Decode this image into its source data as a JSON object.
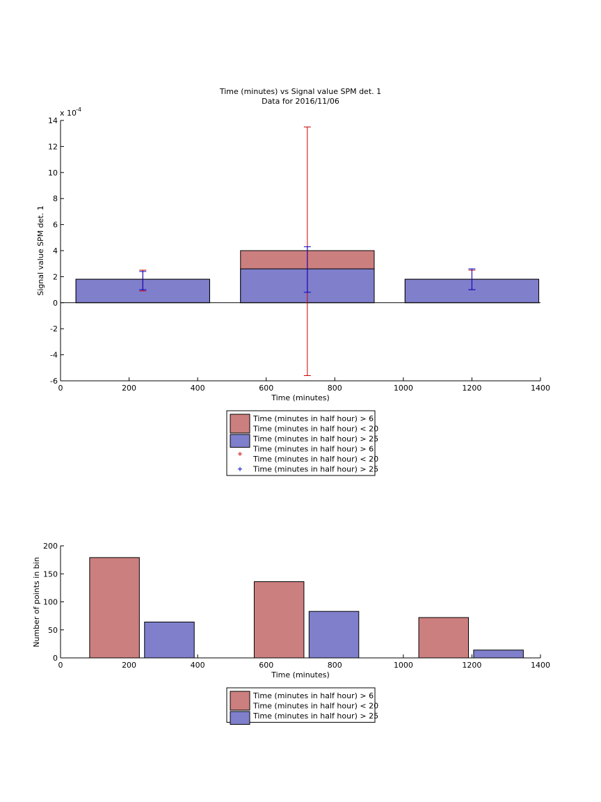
{
  "colors": {
    "red_bar": "#cc7f7f",
    "blue_bar": "#7f7fcc",
    "red_err": "#cc0000",
    "blue_err": "#0000cc",
    "axis": "#000000"
  },
  "chart_data": [
    {
      "type": "bar",
      "title": "Time (minutes) vs Signal value SPM det. 1",
      "subtitle": "Data for 2016/11/06",
      "xlabel": "Time (minutes)",
      "ylabel": "Signal value SPM det. 1",
      "y_exponent_label": "x 10",
      "y_exponent": "-4",
      "xlim": [
        0,
        1400
      ],
      "ylim": [
        -6,
        14
      ],
      "xticks": [
        "0",
        "200",
        "400",
        "600",
        "800",
        "1000",
        "1200",
        "1400"
      ],
      "yticks": [
        "-6",
        "-4",
        "-2",
        "0",
        "2",
        "4",
        "6",
        "8",
        "10",
        "12",
        "14"
      ],
      "stacked": true,
      "bins": [
        {
          "x0": 45,
          "x1": 435,
          "center": 240
        },
        {
          "x0": 525,
          "x1": 915,
          "center": 720
        },
        {
          "x0": 1005,
          "x1": 1395,
          "center": 1200
        }
      ],
      "series": [
        {
          "name": "Time (minutes in half hour) > 6\nTime (minutes in half hour) < 20",
          "color": "#cc7f7f",
          "values": [
            1.8,
            4.0,
            1.8
          ]
        },
        {
          "name": "Time (minutes in half hour) > 25",
          "color": "#7f7fcc",
          "values": [
            1.8,
            2.6,
            1.8
          ]
        }
      ],
      "error_bars": [
        {
          "name": "Time (minutes in half hour) > 6\nTime (minutes in half hour) < 20",
          "color": "#cc0000",
          "points": [
            {
              "x": 240,
              "low": 0.9,
              "high": 2.5
            },
            {
              "x": 720,
              "low": -5.6,
              "high": 13.5
            },
            {
              "x": 1200,
              "low": 1.0,
              "high": 2.5
            }
          ]
        },
        {
          "name": "Time (minutes in half hour) > 25",
          "color": "#0000cc",
          "points": [
            {
              "x": 240,
              "low": 1.0,
              "high": 2.4
            },
            {
              "x": 720,
              "low": 0.8,
              "high": 4.3
            },
            {
              "x": 1200,
              "low": 1.0,
              "high": 2.6
            }
          ]
        }
      ],
      "legend": [
        {
          "kind": "patch",
          "color": "#cc7f7f",
          "line1": "Time (minutes in half hour) > 6",
          "line2": "Time (minutes in half hour) < 20"
        },
        {
          "kind": "patch",
          "color": "#7f7fcc",
          "line1": "Time (minutes in half hour) > 25",
          "line2": ""
        },
        {
          "kind": "marker",
          "color": "#cc0000",
          "line1": "Time (minutes in half hour) > 6",
          "line2": "Time (minutes in half hour) < 20"
        },
        {
          "kind": "marker",
          "color": "#0000cc",
          "line1": "Time (minutes in half hour) > 25",
          "line2": ""
        }
      ],
      "legend_placement": "below"
    },
    {
      "type": "bar",
      "title": "",
      "xlabel": "Time (minutes)",
      "ylabel": "Number of points in bin",
      "xlim": [
        0,
        1400
      ],
      "ylim": [
        0,
        200
      ],
      "xticks": [
        "0",
        "200",
        "400",
        "600",
        "800",
        "1000",
        "1200",
        "1400"
      ],
      "yticks": [
        "0",
        "50",
        "100",
        "150",
        "200"
      ],
      "bars": [
        {
          "x0": 85,
          "x1": 230,
          "value": 179,
          "series": 0
        },
        {
          "x0": 245,
          "x1": 390,
          "value": 64,
          "series": 1
        },
        {
          "x0": 565,
          "x1": 710,
          "value": 136,
          "series": 0
        },
        {
          "x0": 725,
          "x1": 870,
          "value": 83,
          "series": 1
        },
        {
          "x0": 1045,
          "x1": 1190,
          "value": 72,
          "series": 0
        },
        {
          "x0": 1205,
          "x1": 1350,
          "value": 14,
          "series": 1
        }
      ],
      "series": [
        {
          "name": "Time (minutes in half hour) > 6\nTime (minutes in half hour) < 20",
          "color": "#cc7f7f"
        },
        {
          "name": "Time (minutes in half hour) > 25",
          "color": "#7f7fcc"
        }
      ],
      "legend": [
        {
          "kind": "patch",
          "color": "#cc7f7f",
          "line1": "Time (minutes in half hour) > 6",
          "line2": "Time (minutes in half hour) < 20"
        },
        {
          "kind": "patch",
          "color": "#7f7fcc",
          "line1": "Time (minutes in half hour) > 25",
          "line2": ""
        }
      ],
      "legend_placement": "below"
    }
  ]
}
